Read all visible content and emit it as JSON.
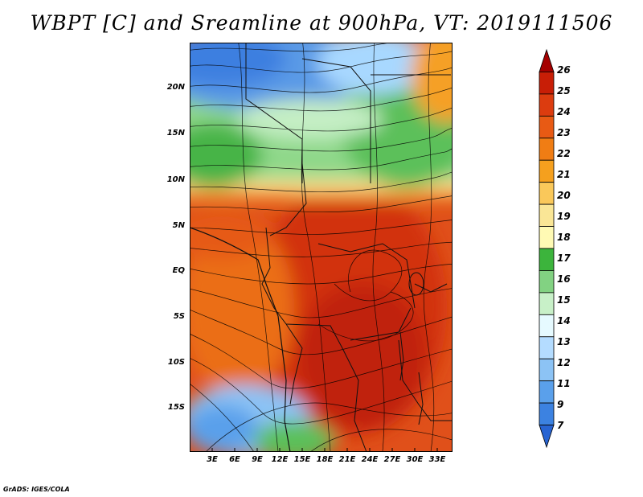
{
  "title": "WBPT [C] and Sreamline at 900hPa, VT: 2019111506",
  "credit": "GrADS: IGES/COLA",
  "map": {
    "lat_labels": [
      "20N",
      "15N",
      "10N",
      "5N",
      "EQ",
      "5S",
      "10S",
      "15S"
    ],
    "lon_labels": [
      "3E",
      "6E",
      "9E",
      "12E",
      "15E",
      "18E",
      "21E",
      "24E",
      "27E",
      "30E",
      "33E"
    ]
  },
  "colorbar": {
    "labels": [
      "26",
      "25",
      "24",
      "23",
      "22",
      "21",
      "20",
      "19",
      "18",
      "17",
      "16",
      "15",
      "14",
      "13",
      "12",
      "11",
      "9",
      "7"
    ],
    "colors": [
      "#a50000",
      "#c81e06",
      "#dc3c0f",
      "#e85a14",
      "#f07d14",
      "#f5a01e",
      "#fac85a",
      "#fae696",
      "#fffab4",
      "#3cb43c",
      "#82d282",
      "#c8f0c8",
      "#e6faff",
      "#b4dcff",
      "#8cc3f5",
      "#5aa0eb",
      "#3c82e1",
      "#2864d2"
    ]
  }
}
